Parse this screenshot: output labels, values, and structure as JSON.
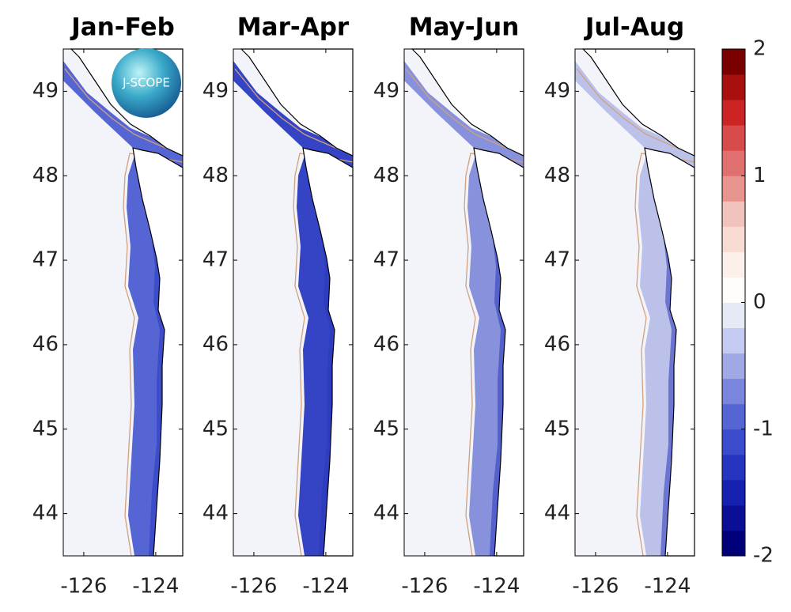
{
  "chart_data": {
    "type": "map",
    "panels": [
      {
        "title": "Jan-Feb",
        "color": "#5565d4"
      },
      {
        "title": "Mar-Apr",
        "color": "#3444c4"
      },
      {
        "title": "May-Jun",
        "color": "#8791dc"
      },
      {
        "title": "Jul-Aug",
        "color": "#bcc1ea"
      }
    ],
    "xlim": [
      -126.57,
      -123.25
    ],
    "xticks": [
      -126,
      -124
    ],
    "ylim": [
      43.5,
      49.5
    ],
    "yticks": [
      44,
      45,
      46,
      47,
      48,
      49
    ],
    "logo": "J-SCOPE",
    "colorbar": {
      "lim": [
        -2,
        2
      ],
      "ticks": [
        -2,
        -1,
        0,
        1,
        2
      ],
      "colors": [
        "#00007a",
        "#0a0f96",
        "#1520b0",
        "#2535c0",
        "#3a4ccc",
        "#5565d4",
        "#7a85dc",
        "#a0a8e6",
        "#c5caf0",
        "#e6e9f6",
        "#fffdfa",
        "#fdf0ea",
        "#f8dcd4",
        "#f2c2bc",
        "#e8958f",
        "#e07070",
        "#d84b4b",
        "#cc2424",
        "#a81010",
        "#7a0000"
      ]
    }
  }
}
